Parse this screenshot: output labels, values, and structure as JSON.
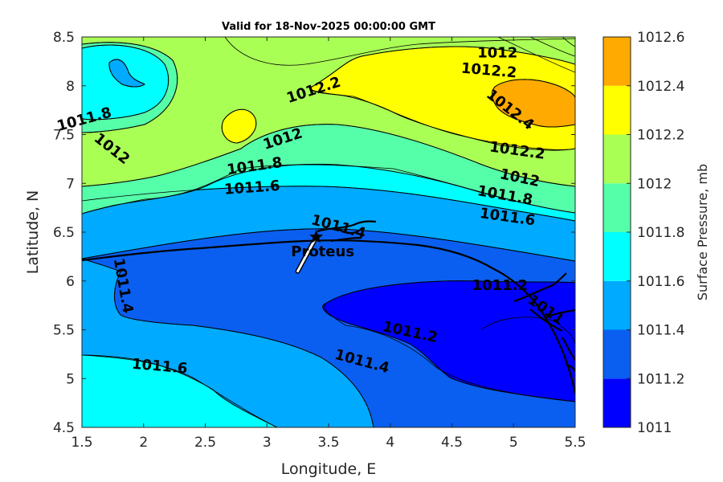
{
  "chart_data": {
    "type": "filled-contour",
    "title": "Valid for 18-Nov-2025 00:00:00 GMT",
    "xlabel": "Longitude, E",
    "ylabel": "Latitude, N",
    "xlim": [
      1.5,
      5.5
    ],
    "ylim": [
      4.5,
      8.5
    ],
    "xticks": [
      "1.5",
      "2",
      "2.5",
      "3",
      "3.5",
      "4",
      "4.5",
      "5",
      "5.5"
    ],
    "yticks": [
      "4.5",
      "5",
      "5.5",
      "6",
      "6.5",
      "7",
      "7.5",
      "8",
      "8.5"
    ],
    "colorbar": {
      "label": "Surface Pressure, mb",
      "levels": [
        1011,
        1011.2,
        1011.4,
        1011.6,
        1011.8,
        1012,
        1012.2,
        1012.4,
        1012.6
      ],
      "tick_labels": [
        "1011",
        "1011.2",
        "1011.4",
        "1011.6",
        "1011.8",
        "1012",
        "1012.2",
        "1012.4",
        "1012.6"
      ],
      "colors": [
        "#0000ff",
        "#0a5ff0",
        "#00aaff",
        "#00ffff",
        "#55ffaa",
        "#aaff55",
        "#ffff00",
        "#ffaa00",
        "#ff5500"
      ]
    },
    "contour_labels": [
      {
        "text": "1011.8",
        "x": 1.52,
        "y": 7.65,
        "angle": -15
      },
      {
        "text": "1012",
        "x": 1.74,
        "y": 7.35,
        "angle": 38
      },
      {
        "text": "1012.2",
        "x": 3.38,
        "y": 7.95,
        "angle": -18
      },
      {
        "text": "1012",
        "x": 4.87,
        "y": 8.33,
        "angle": 0
      },
      {
        "text": "1012.2",
        "x": 4.8,
        "y": 8.15,
        "angle": 5
      },
      {
        "text": "1012.4",
        "x": 4.97,
        "y": 7.75,
        "angle": 38
      },
      {
        "text": "1012",
        "x": 3.13,
        "y": 7.45,
        "angle": -18
      },
      {
        "text": "1011.8",
        "x": 2.9,
        "y": 7.17,
        "angle": -8
      },
      {
        "text": "1011.6",
        "x": 2.88,
        "y": 6.95,
        "angle": -4
      },
      {
        "text": "1012.2",
        "x": 5.03,
        "y": 7.33,
        "angle": 8
      },
      {
        "text": "1012",
        "x": 5.05,
        "y": 7.05,
        "angle": 12
      },
      {
        "text": "1011.8",
        "x": 4.93,
        "y": 6.87,
        "angle": 10
      },
      {
        "text": "1011.6",
        "x": 4.95,
        "y": 6.65,
        "angle": 8
      },
      {
        "text": "1011.4",
        "x": 3.58,
        "y": 6.55,
        "angle": 15
      },
      {
        "text": "1011.4",
        "x": 1.83,
        "y": 5.95,
        "angle": 80
      },
      {
        "text": "1011.2",
        "x": 4.89,
        "y": 5.95,
        "angle": 0
      },
      {
        "text": "1011",
        "x": 5.26,
        "y": 5.7,
        "angle": 35
      },
      {
        "text": "1011.2",
        "x": 4.16,
        "y": 5.47,
        "angle": 12
      },
      {
        "text": "1011.4",
        "x": 3.77,
        "y": 5.17,
        "angle": 15
      },
      {
        "text": "1011.6",
        "x": 2.13,
        "y": 5.12,
        "angle": 5
      }
    ],
    "marker": {
      "label": "Proteus",
      "symbol": "star",
      "lon": 3.4,
      "lat": 6.45
    },
    "wind_barb": {
      "from_lon": 3.4,
      "from_lat": 6.45,
      "to_lon": 3.25,
      "to_lat": 6.1
    }
  }
}
